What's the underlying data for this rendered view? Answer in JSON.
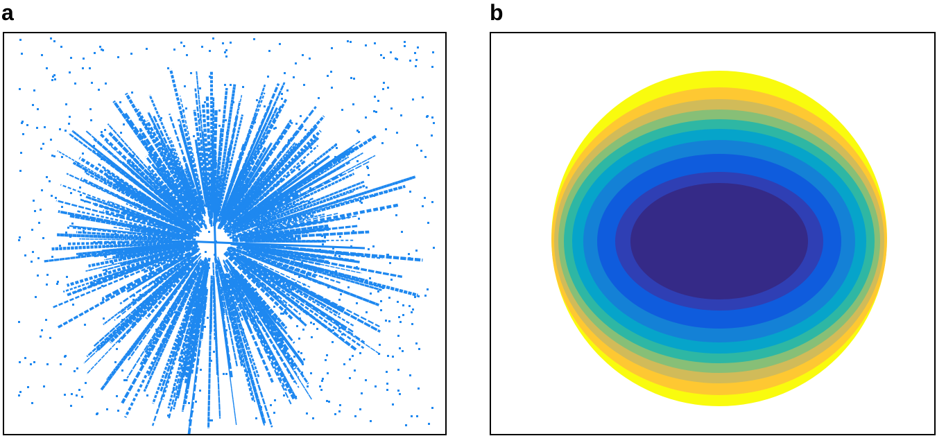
{
  "figure": {
    "panels": [
      {
        "label": "a",
        "description_type": "vector-field-scatter",
        "color": "#1e88f0"
      },
      {
        "label": "b",
        "description_type": "color-map-disk",
        "colormap": [
          "#352a87",
          "#0f5cdd",
          "#1481d6",
          "#06a4ca",
          "#2eb7a4",
          "#87bf77",
          "#d1bb59",
          "#fec832",
          "#f9fb0e"
        ]
      }
    ]
  }
}
